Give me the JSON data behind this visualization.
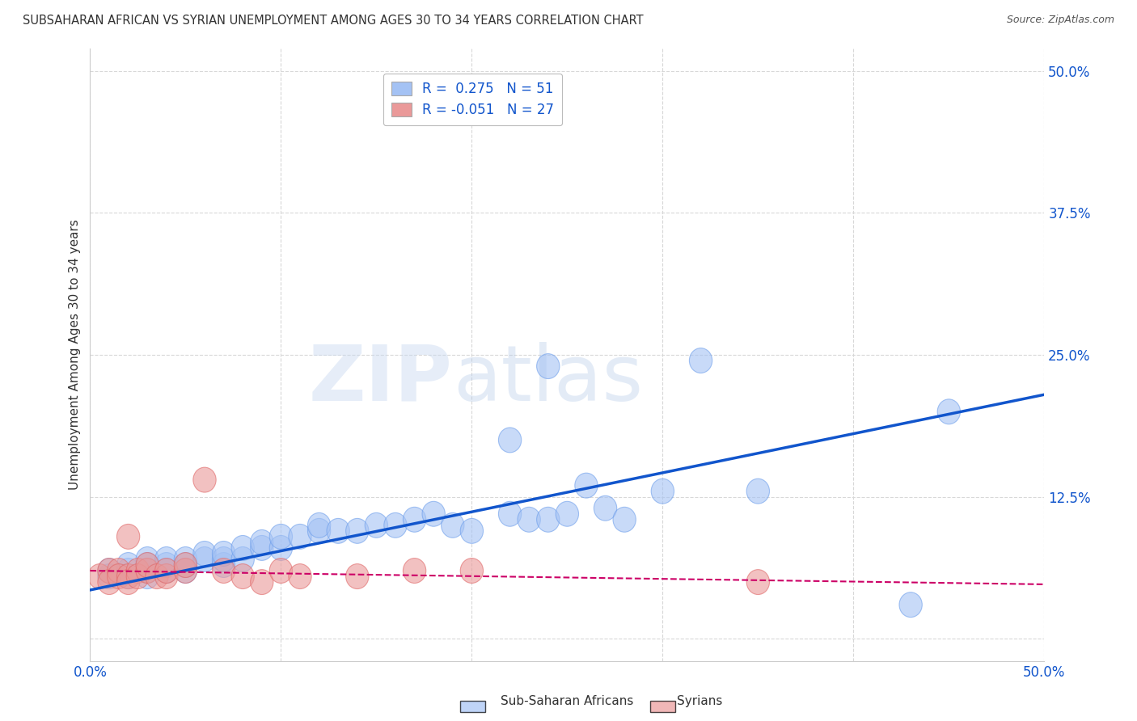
{
  "title": "SUBSAHARAN AFRICAN VS SYRIAN UNEMPLOYMENT AMONG AGES 30 TO 34 YEARS CORRELATION CHART",
  "source": "Source: ZipAtlas.com",
  "ylabel": "Unemployment Among Ages 30 to 34 years",
  "xlim": [
    0.0,
    0.5
  ],
  "ylim": [
    -0.02,
    0.52
  ],
  "xticks": [
    0.0,
    0.1,
    0.2,
    0.3,
    0.4,
    0.5
  ],
  "xticklabels": [
    "0.0%",
    "",
    "",
    "",
    "",
    "50.0%"
  ],
  "ytick_positions": [
    0.0,
    0.125,
    0.25,
    0.375,
    0.5
  ],
  "ytick_labels": [
    "",
    "12.5%",
    "25.0%",
    "37.5%",
    "50.0%"
  ],
  "background_color": "#ffffff",
  "grid_color": "#d8d8d8",
  "blue_color": "#a4c2f4",
  "blue_edge_color": "#6d9eeb",
  "pink_color": "#ea9999",
  "pink_edge_color": "#e06666",
  "blue_line_color": "#1155cc",
  "pink_line_color": "#cc0066",
  "tick_label_color": "#1155cc",
  "legend_R_blue": "0.275",
  "legend_N_blue": "51",
  "legend_R_pink": "-0.051",
  "legend_N_pink": "27",
  "watermark_zip": "ZIP",
  "watermark_atlas": "atlas",
  "blue_line_y_start": 0.043,
  "blue_line_y_end": 0.215,
  "pink_line_y_start": 0.06,
  "pink_line_y_end": 0.048,
  "blue_scatter_x": [
    0.01,
    0.01,
    0.02,
    0.02,
    0.02,
    0.03,
    0.03,
    0.03,
    0.03,
    0.04,
    0.04,
    0.04,
    0.05,
    0.05,
    0.05,
    0.06,
    0.06,
    0.07,
    0.07,
    0.07,
    0.08,
    0.08,
    0.09,
    0.09,
    0.1,
    0.1,
    0.11,
    0.12,
    0.12,
    0.13,
    0.14,
    0.15,
    0.16,
    0.17,
    0.18,
    0.19,
    0.2,
    0.22,
    0.23,
    0.24,
    0.25,
    0.27,
    0.28,
    0.3,
    0.32,
    0.35,
    0.22,
    0.43,
    0.24,
    0.45,
    0.26
  ],
  "blue_scatter_y": [
    0.055,
    0.06,
    0.055,
    0.06,
    0.065,
    0.055,
    0.06,
    0.065,
    0.07,
    0.06,
    0.065,
    0.07,
    0.06,
    0.065,
    0.07,
    0.07,
    0.075,
    0.065,
    0.07,
    0.075,
    0.07,
    0.08,
    0.08,
    0.085,
    0.08,
    0.09,
    0.09,
    0.095,
    0.1,
    0.095,
    0.095,
    0.1,
    0.1,
    0.105,
    0.11,
    0.1,
    0.095,
    0.11,
    0.105,
    0.105,
    0.11,
    0.115,
    0.105,
    0.13,
    0.245,
    0.13,
    0.175,
    0.03,
    0.24,
    0.2,
    0.135
  ],
  "pink_scatter_x": [
    0.005,
    0.01,
    0.01,
    0.015,
    0.015,
    0.02,
    0.02,
    0.025,
    0.025,
    0.03,
    0.03,
    0.035,
    0.04,
    0.04,
    0.05,
    0.05,
    0.06,
    0.07,
    0.08,
    0.09,
    0.1,
    0.11,
    0.14,
    0.17,
    0.2,
    0.35,
    0.02
  ],
  "pink_scatter_y": [
    0.055,
    0.06,
    0.05,
    0.06,
    0.055,
    0.055,
    0.05,
    0.06,
    0.055,
    0.06,
    0.065,
    0.055,
    0.055,
    0.06,
    0.06,
    0.065,
    0.14,
    0.06,
    0.055,
    0.05,
    0.06,
    0.055,
    0.055,
    0.06,
    0.06,
    0.05,
    0.09
  ]
}
